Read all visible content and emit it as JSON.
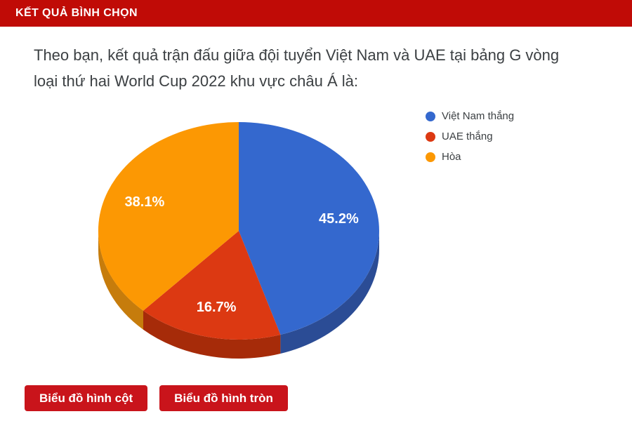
{
  "header": {
    "title": "KẾT QUẢ BÌNH CHỌN"
  },
  "question": "Theo bạn, kết quả trận đấu giữa đội tuyển Việt Nam và UAE tại bảng G vòng loại thứ hai World Cup 2022 khu vực châu Á là:",
  "chart_data": {
    "type": "pie",
    "style": "3d",
    "labels": [
      "Việt Nam thắng",
      "UAE thắng",
      "Hòa"
    ],
    "values": [
      45.2,
      16.7,
      38.1
    ],
    "value_labels": [
      "45.2%",
      "16.7%",
      "38.1%"
    ],
    "colors": [
      "#3468CE",
      "#DC3912",
      "#FC9803"
    ],
    "side_colors": [
      "#2B4C95",
      "#A62B09",
      "#C67C0C"
    ],
    "start_angle_deg": 0,
    "direction": "clockwise",
    "legend_position": "right",
    "slice_label_color": "#FFFFFF"
  },
  "buttons": [
    {
      "label": "Biểu đồ hình cột"
    },
    {
      "label": "Biểu đồ hình tròn"
    }
  ],
  "colors": {
    "header_bg": "#C00B06",
    "button_bg": "#C9141B",
    "text": "#3C4043"
  }
}
